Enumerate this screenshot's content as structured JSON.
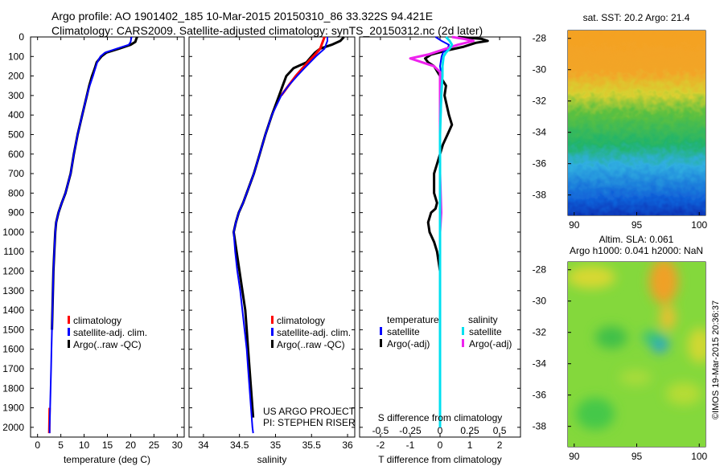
{
  "header": {
    "line1": "Argo profile: AO 1901402_185 10-Mar-2015 20150310_86 33.322S 94.421E",
    "line2": "Climatology: CARS2009. Satellite-adjusted climatology: synTS_20150312.nc (2d later)"
  },
  "colors": {
    "climatology": "#ff0000",
    "satellite": "#0000ff",
    "argo": "#000000",
    "sat_s": "#00e0f0",
    "argo_s": "#ee22ee"
  },
  "depth_axis": {
    "ylim": [
      0,
      2050
    ],
    "ticks": [
      "0",
      "100",
      "200",
      "300",
      "400",
      "500",
      "600",
      "700",
      "800",
      "900",
      "1000",
      "1100",
      "1200",
      "1300",
      "1400",
      "1500",
      "1600",
      "1700",
      "1800",
      "1900",
      "2000"
    ]
  },
  "chart_data": [
    {
      "type": "line",
      "name": "temperature",
      "xlabel": "temperature (deg C)",
      "ylabel": "depth",
      "xlim": [
        -1.5,
        31.5
      ],
      "ylim": [
        0,
        2050
      ],
      "xticks": [
        "0",
        "5",
        "10",
        "15",
        "20",
        "25",
        "30"
      ],
      "legend": [
        "climatology",
        "satellite-adj. clim.",
        "Argo(..raw -QC)"
      ],
      "series": [
        {
          "name": "climatology",
          "depth": [
            1900,
            2030
          ],
          "values": [
            2.6,
            2.5
          ]
        },
        {
          "name": "satellite-adj. clim.",
          "depth": [
            0,
            10,
            25,
            40,
            60,
            80,
            100,
            130,
            160,
            200,
            250,
            300,
            400,
            500,
            600,
            700,
            800,
            850,
            900,
            950,
            1000,
            1100,
            1200,
            1300,
            1400,
            1500,
            1600,
            1700,
            1800,
            1900,
            2000,
            2030
          ],
          "values": [
            20.2,
            20.1,
            20.0,
            19.6,
            17.0,
            14.5,
            13.5,
            12.8,
            12.4,
            11.9,
            11.2,
            10.6,
            9.6,
            8.6,
            7.8,
            7.1,
            6.0,
            5.2,
            4.5,
            4.0,
            3.8,
            3.6,
            3.4,
            3.3,
            3.2,
            3.1,
            3.0,
            2.9,
            2.8,
            2.7,
            2.6,
            2.6
          ]
        },
        {
          "name": "Argo(..raw -QC)",
          "depth": [
            0,
            10,
            25,
            40,
            60,
            80,
            100,
            130,
            160,
            200,
            250,
            300,
            400,
            500,
            600,
            700,
            800,
            850,
            900,
            950,
            1000,
            1100,
            1200,
            1300,
            1400,
            1500
          ],
          "values": [
            21.4,
            21.2,
            21.0,
            20.0,
            17.5,
            14.8,
            13.7,
            12.7,
            12.3,
            11.7,
            11.1,
            10.6,
            9.6,
            8.6,
            7.8,
            7.1,
            6.0,
            5.2,
            4.5,
            4.0,
            3.8,
            3.6,
            3.4,
            3.3,
            3.2,
            3.1
          ]
        }
      ]
    },
    {
      "type": "line",
      "name": "salinity",
      "xlabel": "salinity",
      "ylabel": "depth",
      "xlim": [
        33.8,
        36.1
      ],
      "ylim": [
        0,
        2050
      ],
      "xticks": [
        "34",
        "34.5",
        "35",
        "35.5",
        "36"
      ],
      "legend": [
        "climatology",
        "satellite-adj. clim.",
        "Argo(..raw -QC)"
      ],
      "annotation": [
        "US ARGO PROJECT",
        "PI: STEPHEN RISER"
      ],
      "series": [
        {
          "name": "climatology",
          "depth": [
            0,
            30,
            60,
            90,
            120,
            150,
            200,
            250,
            300
          ],
          "values": [
            35.68,
            35.65,
            35.62,
            35.55,
            35.47,
            35.4,
            35.28,
            35.18,
            35.08
          ]
        },
        {
          "name": "satellite-adj. clim.",
          "depth": [
            0,
            20,
            40,
            60,
            80,
            100,
            130,
            160,
            200,
            250,
            300,
            400,
            500,
            600,
            700,
            800,
            850,
            900,
            950,
            1000,
            1100,
            1200,
            1300,
            1400,
            1500,
            1600,
            1700,
            1800,
            1900,
            2000,
            2030
          ],
          "values": [
            35.72,
            35.72,
            35.7,
            35.68,
            35.62,
            35.56,
            35.48,
            35.4,
            35.3,
            35.18,
            35.08,
            34.95,
            34.86,
            34.78,
            34.7,
            34.6,
            34.55,
            34.49,
            34.45,
            34.42,
            34.44,
            34.47,
            34.51,
            34.54,
            34.57,
            34.6,
            34.62,
            34.64,
            34.66,
            34.68,
            34.69
          ]
        },
        {
          "name": "Argo(..raw -QC)",
          "depth": [
            0,
            20,
            40,
            60,
            80,
            100,
            130,
            160,
            200,
            250,
            300,
            400,
            500,
            600,
            700,
            800,
            850,
            900,
            950,
            1000,
            1100,
            1200,
            1300,
            1400,
            1500,
            1600,
            1700,
            1800,
            1900,
            1950
          ],
          "values": [
            35.95,
            35.9,
            35.78,
            35.62,
            35.55,
            35.5,
            35.43,
            35.25,
            35.15,
            35.1,
            35.05,
            34.95,
            34.86,
            34.78,
            34.7,
            34.6,
            34.55,
            34.49,
            34.45,
            34.42,
            34.46,
            34.5,
            34.54,
            34.58,
            34.6,
            34.62,
            34.64,
            34.66,
            34.68,
            34.69
          ]
        }
      ]
    },
    {
      "type": "line",
      "name": "difference",
      "xlabel": "T difference from climatology",
      "xlabel_top": "S difference from climatology",
      "ylim": [
        0,
        2050
      ],
      "xlim": [
        -2.7,
        2.7
      ],
      "xticks_T": [
        "-2",
        "-1",
        "0",
        "1",
        "2"
      ],
      "xticks_S": [
        "-0.5",
        "-0.25",
        "0",
        "0.25",
        "0.5"
      ],
      "legend": {
        "temperature_title": "temperature",
        "salinity_title": "salinity",
        "items": [
          "satellite",
          "Argo(-adj)",
          "satellite",
          "Argo(-adj)"
        ]
      },
      "series": [
        {
          "name": "T satellite",
          "depth": [
            0,
            20,
            40,
            60,
            80,
            100,
            150,
            200,
            300,
            500,
            800,
            1000,
            1500,
            2000
          ],
          "values": [
            -0.15,
            0.05,
            0.3,
            0.25,
            0.1,
            0.05,
            0.0,
            0.05,
            0.05,
            0.0,
            0.0,
            0.0,
            0.0,
            0.0
          ]
        },
        {
          "name": "T Argo(-adj)",
          "depth": [
            0,
            10,
            20,
            30,
            50,
            70,
            90,
            110,
            130,
            150,
            200,
            250,
            300,
            400,
            450,
            500,
            550,
            600,
            650,
            700,
            800,
            850,
            880,
            900,
            950,
            1000,
            1050,
            1100,
            1200,
            1300,
            1400,
            1500
          ],
          "values": [
            0.6,
            1.4,
            1.6,
            1.2,
            0.8,
            0.2,
            -0.3,
            -0.5,
            -0.4,
            -0.2,
            0.0,
            0.2,
            0.15,
            0.3,
            0.4,
            0.25,
            0.1,
            0.0,
            -0.1,
            -0.2,
            -0.2,
            -0.1,
            -0.15,
            -0.3,
            -0.4,
            -0.35,
            -0.2,
            -0.1,
            0.0,
            0.0,
            0.0,
            0.0
          ]
        },
        {
          "name": "S satellite",
          "depth": [
            0,
            20,
            40,
            60,
            80,
            100,
            150,
            200,
            300,
            500,
            800,
            1000,
            1500,
            2000
          ],
          "values": [
            0.05,
            0.08,
            0.1,
            0.08,
            0.05,
            0.03,
            0.02,
            0.02,
            0.01,
            0.0,
            0.0,
            0.0,
            0.0,
            0.0
          ]
        },
        {
          "name": "S Argo(-adj)",
          "depth": [
            0,
            10,
            20,
            40,
            60,
            90,
            110,
            130,
            150,
            180,
            220,
            300,
            500,
            700,
            900,
            1000,
            1100,
            1500,
            1900
          ],
          "values": [
            0.1,
            0.2,
            0.28,
            0.15,
            0.05,
            -0.1,
            -0.25,
            -0.15,
            -0.05,
            0.0,
            0.0,
            0.0,
            0.0,
            0.0,
            0.01,
            0.0,
            0.0,
            0.0,
            0.0
          ]
        }
      ]
    },
    {
      "type": "heatmap",
      "name": "sst_map",
      "title": "sat. SST: 20.2 Argo: 21.4",
      "xlim": [
        89.5,
        100.5
      ],
      "ylim": [
        -39.3,
        -27.5
      ],
      "xticks": [
        "90",
        "95",
        "100"
      ],
      "yticks": [
        "-28",
        "-30",
        "-32",
        "-34",
        "-36",
        "-38"
      ]
    },
    {
      "type": "heatmap",
      "name": "sla_map",
      "title_line1": "Altim. SLA: 0.061",
      "title_line2": "Argo h1000: 0.041 h2000: NaN",
      "xlim": [
        89.5,
        100.5
      ],
      "ylim": [
        -39.3,
        -27.5
      ],
      "xticks": [
        "90",
        "95",
        "100"
      ],
      "yticks": [
        "-28",
        "-30",
        "-32",
        "-34",
        "-36",
        "-38"
      ]
    }
  ],
  "footer": {
    "stamp": "©IMOS 19-Mar-2015 20:36:37"
  }
}
